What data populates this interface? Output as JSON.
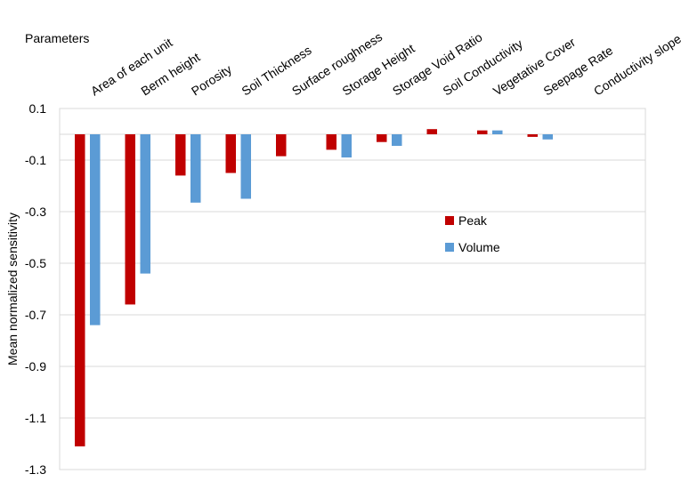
{
  "chart_data": {
    "type": "bar",
    "title": "",
    "category_axis_title": "Parameters",
    "xlabel": "Parameters",
    "ylabel": "Mean normalized sensitivity",
    "ylim": [
      -1.3,
      0.1
    ],
    "yticks": [
      0.1,
      -0.1,
      -0.3,
      -0.5,
      -0.7,
      -0.9,
      -1.1,
      -1.3
    ],
    "ytick_labels": [
      "0.1",
      "-0.1",
      "-0.3",
      "-0.5",
      "-0.7",
      "-0.9",
      "-1.1",
      "-1.3"
    ],
    "grid": true,
    "legend_position": "right-center",
    "categories": [
      "Area of each unit",
      "Berm height",
      "Porosity",
      "Soil Thickness",
      "Surface roughness",
      "Storage Height",
      "Storage Void Ratio",
      "Soil Conductivity",
      "Vegetative Cover",
      "Seepage Rate",
      "Conductivity slope"
    ],
    "series": [
      {
        "name": "Peak",
        "color": "#c00000",
        "values": [
          -1.21,
          -0.66,
          -0.16,
          -0.15,
          -0.085,
          -0.06,
          -0.03,
          0.02,
          0.015,
          -0.01,
          0.0
        ]
      },
      {
        "name": "Volume",
        "color": "#5b9bd5",
        "values": [
          -0.74,
          -0.54,
          -0.265,
          -0.25,
          0.0,
          -0.09,
          -0.045,
          0.0,
          0.015,
          -0.02,
          0.0
        ]
      }
    ]
  }
}
